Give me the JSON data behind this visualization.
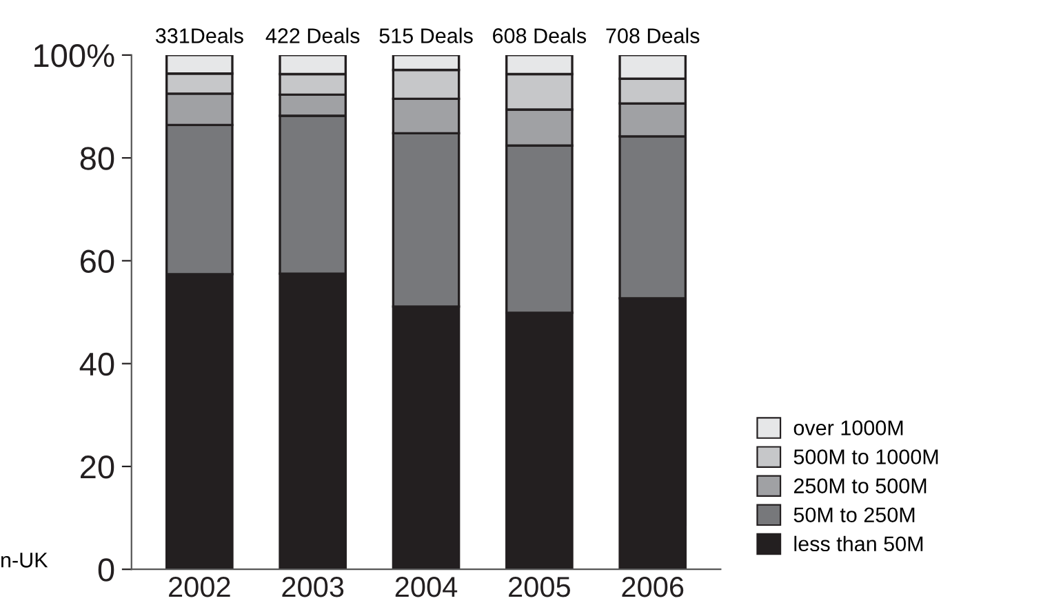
{
  "chart_data": {
    "type": "bar",
    "stacked": true,
    "categories": [
      "2002",
      "2003",
      "2004",
      "2005",
      "2006"
    ],
    "series": [
      {
        "name": "less than 50M",
        "color": "#231f20",
        "values": [
          57.4,
          57.5,
          51.1,
          49.9,
          52.7
        ]
      },
      {
        "name": "50M to 250M",
        "color": "#77787b",
        "values": [
          29.0,
          30.7,
          33.7,
          32.5,
          31.5
        ]
      },
      {
        "name": "250M to 500M",
        "color": "#a0a1a4",
        "values": [
          6.1,
          4.1,
          6.7,
          7.0,
          6.4
        ]
      },
      {
        "name": "500M to 1000M",
        "color": "#c6c7c9",
        "values": [
          3.9,
          4.0,
          5.6,
          6.9,
          4.8
        ]
      },
      {
        "name": "over 1000M",
        "color": "#e6e7e8",
        "values": [
          3.6,
          3.7,
          2.9,
          3.7,
          4.6
        ]
      }
    ],
    "ylim": [
      0,
      100
    ],
    "yticks": [
      0,
      20,
      40,
      60,
      80,
      {
        "value": 100,
        "label": "100%"
      }
    ],
    "grid": false,
    "legend": "bottom right",
    "annotations": [
      {
        "text": "331Deals",
        "x": "2002",
        "y": 100
      },
      {
        "text": "422 Deals",
        "x": "2003",
        "y": 100
      },
      {
        "text": "515 Deals",
        "x": "2004",
        "y": 100
      },
      {
        "text": "608 Deals",
        "x": "2005",
        "y": 100
      },
      {
        "text": "708 Deals",
        "x": "2006",
        "y": 100
      },
      "n-UK"
    ]
  }
}
